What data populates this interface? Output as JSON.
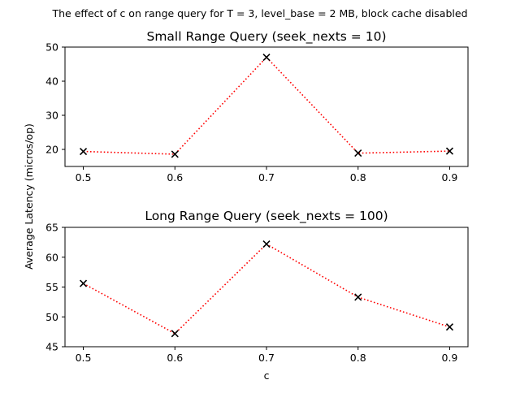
{
  "figure": {
    "suptitle": "The effect of c on range query for T = 3, level_base = 2 MB, block cache disabled",
    "shared_ylabel": "Average Latency (micros/op)",
    "shared_xlabel": "c"
  },
  "colors": {
    "line": "#ff0000",
    "marker": "#000000"
  },
  "chart_data": [
    {
      "type": "line",
      "title": "Small Range Query (seek_nexts = 10)",
      "x": [
        0.5,
        0.6,
        0.7,
        0.8,
        0.9
      ],
      "x_tick_labels": [
        "0.5",
        "0.6",
        "0.7",
        "0.8",
        "0.9"
      ],
      "y_ticks": [
        20,
        30,
        40,
        50
      ],
      "y_tick_labels": [
        "20",
        "30",
        "40",
        "50"
      ],
      "xlim": [
        0.48,
        0.92
      ],
      "ylim": [
        15,
        50
      ],
      "series": [
        {
          "values": [
            19.4,
            18.6,
            47.0,
            18.9,
            19.5
          ]
        }
      ],
      "grid": false,
      "marker": "x",
      "line_style": "dotted"
    },
    {
      "type": "line",
      "title": "Long Range Query (seek_nexts = 100)",
      "x": [
        0.5,
        0.6,
        0.7,
        0.8,
        0.9
      ],
      "x_tick_labels": [
        "0.5",
        "0.6",
        "0.7",
        "0.8",
        "0.9"
      ],
      "y_ticks": [
        45,
        50,
        55,
        60,
        65
      ],
      "y_tick_labels": [
        "45",
        "50",
        "55",
        "60",
        "65"
      ],
      "xlim": [
        0.48,
        0.92
      ],
      "ylim": [
        45,
        65
      ],
      "series": [
        {
          "values": [
            55.6,
            47.2,
            62.2,
            53.3,
            48.3
          ]
        }
      ],
      "grid": false,
      "marker": "x",
      "line_style": "dotted"
    }
  ]
}
